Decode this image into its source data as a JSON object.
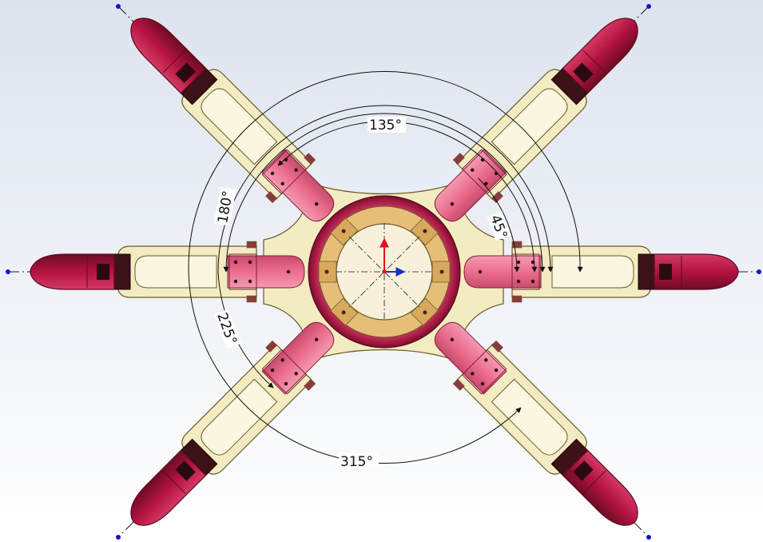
{
  "colors": {
    "background_top": "#dde3ee",
    "background_bottom": "#ffffff",
    "frame": "#f3ecc2",
    "frame_edge": "#6b5a2a",
    "servo": "#ec6f8f",
    "servo_dark": "#7a1e34",
    "foot": "#b3123f",
    "foot_dark": "#5e0a20",
    "hub_ring": "#b8224f",
    "hub_plate": "#e6be78",
    "hub_inner": "#f7f1dc",
    "centerline": "#1a1a1a",
    "endpoint": "#0b18d6",
    "axis_x": "#1a2fc9",
    "axis_y": "#e10f1f"
  },
  "legs": [
    {
      "name": "leg-45",
      "angle_deg": 45
    },
    {
      "name": "leg-135",
      "angle_deg": 135
    },
    {
      "name": "leg-180",
      "angle_deg": 180
    },
    {
      "name": "leg-225",
      "angle_deg": 225
    },
    {
      "name": "leg-315",
      "angle_deg": 315
    },
    {
      "name": "leg-0",
      "angle_deg": 0
    }
  ],
  "dimensions": {
    "d45": "45°",
    "d135": "135°",
    "d180": "180°",
    "d225": "225°",
    "d315": "315°"
  }
}
